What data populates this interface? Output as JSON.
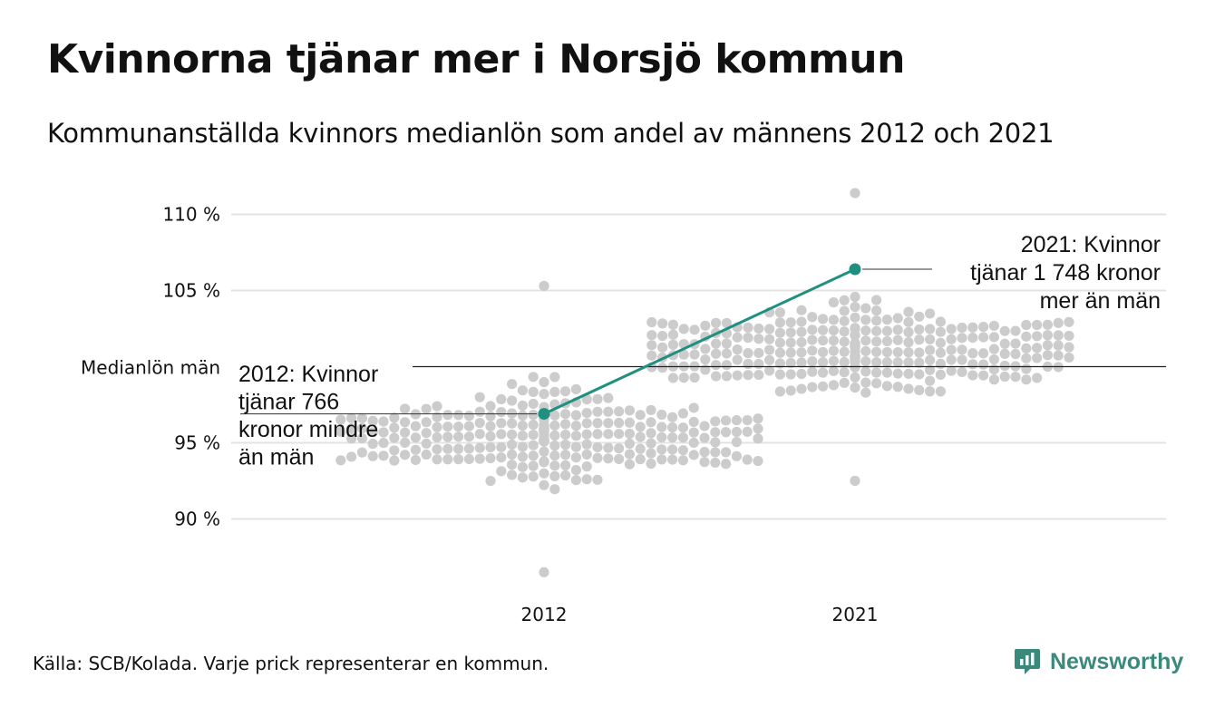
{
  "header": {
    "title": "Kvinnorna tjänar mer i Norsjö kommun",
    "subtitle": "Kommunanställda kvinnors medianlön som andel av männens 2012 och 2021"
  },
  "footer": {
    "source": "Källa: SCB/Kolada. Varje prick representerar en kommun.",
    "brand": "Newsworthy"
  },
  "colors": {
    "dots": "#cccccc",
    "highlight": "#1f8f80",
    "gridline": "#e3e3e3",
    "reference": "#222222",
    "brand": "#3a8a7c"
  },
  "chart_data": {
    "type": "scatter",
    "subtype": "beeswarm",
    "categories": [
      "2012",
      "2021"
    ],
    "y_ticks": [
      90,
      95,
      105,
      110
    ],
    "y_tick_labels": [
      "90 %",
      "95 %",
      "105 %",
      "110 %"
    ],
    "ylim": [
      86,
      112
    ],
    "grid": true,
    "reference_line": {
      "value": 100,
      "label": "Medianlön män"
    },
    "distributions": [
      {
        "category": "2012",
        "min": 86.5,
        "max": 105.3,
        "center": 95.5,
        "count": 290
      },
      {
        "category": "2021",
        "min": 92.5,
        "max": 111.4,
        "center": 101.0,
        "count": 290
      }
    ],
    "highlight": {
      "name": "Norsjö",
      "points": [
        {
          "x": "2012",
          "y": 96.9
        },
        {
          "x": "2021",
          "y": 106.4
        }
      ]
    },
    "annotations": [
      {
        "x": "2012",
        "lines": [
          "2012: Kvinnor",
          "tjänar 766",
          "kronor mindre",
          "än män"
        ]
      },
      {
        "x": "2021",
        "lines": [
          "2021: Kvinnor",
          "tjänar 1 748 kronor",
          "mer än män"
        ]
      }
    ]
  }
}
